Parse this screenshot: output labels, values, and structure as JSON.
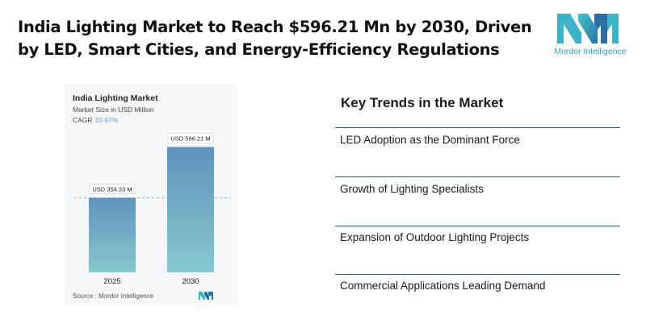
{
  "headline": {
    "line1": "India Lighting Market to Reach $596.21 Mn by 2030, Driven",
    "line2": "by LED, Smart Cities, and Energy-Efficiency Regulations"
  },
  "brand": {
    "name": "Mordor Intelligence",
    "color": "#2d9bb5"
  },
  "chart": {
    "title": "India Lighting Market",
    "subtitle": "Market Size in USD Million",
    "cagr_label": "CAGR",
    "cagr_value": "10.97%",
    "source": "Source : Mordor Intelligence"
  },
  "chart_data": {
    "type": "bar",
    "title": "India Lighting Market",
    "ylabel": "Market Size in USD Million",
    "categories": [
      "2025",
      "2030"
    ],
    "values": [
      354.33,
      596.21
    ],
    "data_labels": [
      "USD 354.33 M",
      "USD 596.21 M"
    ],
    "ylim": [
      0,
      640
    ],
    "grid": false,
    "reference_line": 354.33,
    "colors": {
      "bar_top": "#5e93bd",
      "bar_bottom": "#86c9cf",
      "reference_line": "#7fb9c9"
    }
  },
  "trends": {
    "title": "Key Trends in the Market",
    "items": [
      "LED Adoption as the Dominant Force",
      "Growth of Lighting Specialists",
      "Expansion of Outdoor Lighting Projects",
      "Commercial Applications Leading Demand"
    ],
    "rule_color": "#1f5f7a"
  }
}
